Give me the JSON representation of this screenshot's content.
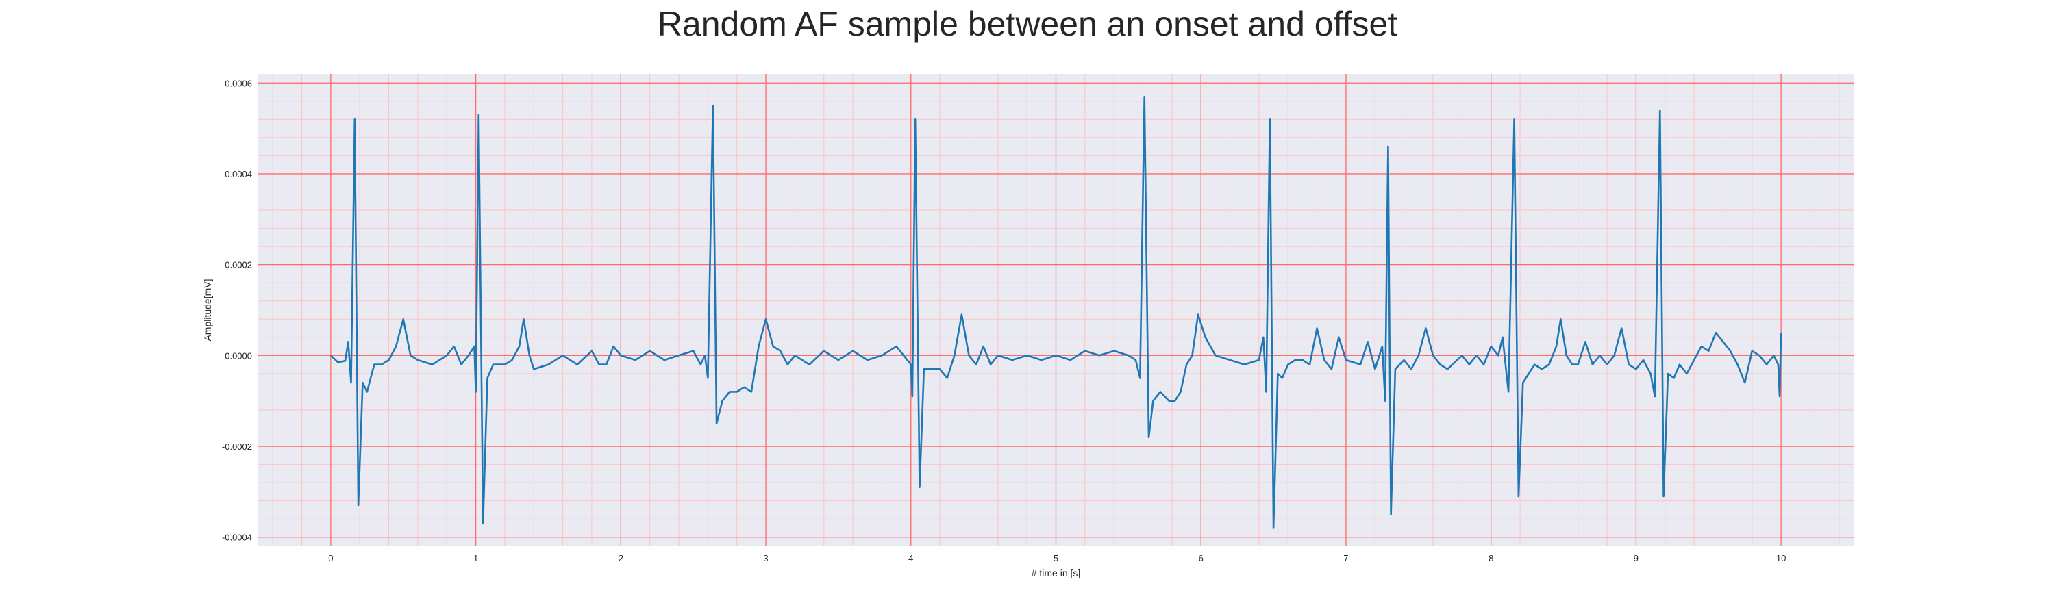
{
  "chart_data": {
    "type": "line",
    "title": "Random AF sample between an onset and offset",
    "xlabel": "# time in [s]",
    "ylabel": "Amplitude[mV]",
    "xlim": [
      -0.5,
      10.5
    ],
    "ylim": [
      -0.00042,
      0.00062
    ],
    "xticks": [
      0,
      1,
      2,
      3,
      4,
      5,
      6,
      7,
      8,
      9,
      10
    ],
    "xtick_labels": [
      "0",
      "1",
      "2",
      "3",
      "4",
      "5",
      "6",
      "7",
      "8",
      "9",
      "10"
    ],
    "yticks": [
      -0.0004,
      -0.0002,
      0.0,
      0.0002,
      0.0004,
      0.0006
    ],
    "ytick_labels": [
      "-0.0004",
      "-0.0002",
      "0.0000",
      "0.0002",
      "0.0004",
      "0.0006"
    ],
    "grid": true,
    "minor_grid": true,
    "colors": {
      "line": "#1f77b4",
      "major_grid": "#ff6b6b",
      "minor_grid": "#ffc3c3",
      "background": "#eaeaf2",
      "text": "#262626"
    },
    "series": [
      {
        "values": [
          [
            0.0,
            0.0
          ],
          [
            0.05,
            -1.5e-05
          ],
          [
            0.1,
            -1.2e-05
          ],
          [
            0.12,
            3e-05
          ],
          [
            0.14,
            -6e-05
          ],
          [
            0.165,
            0.00052
          ],
          [
            0.19,
            -0.00033
          ],
          [
            0.22,
            -6e-05
          ],
          [
            0.25,
            -8e-05
          ],
          [
            0.3,
            -2e-05
          ],
          [
            0.35,
            -2e-05
          ],
          [
            0.4,
            -1e-05
          ],
          [
            0.45,
            2e-05
          ],
          [
            0.5,
            8e-05
          ],
          [
            0.55,
            0.0
          ],
          [
            0.6,
            -1e-05
          ],
          [
            0.7,
            -2e-05
          ],
          [
            0.8,
            0.0
          ],
          [
            0.85,
            2e-05
          ],
          [
            0.9,
            -2e-05
          ],
          [
            0.95,
            0.0
          ],
          [
            0.99,
            2e-05
          ],
          [
            1.0,
            -8e-05
          ],
          [
            1.02,
            0.00053
          ],
          [
            1.05,
            -0.00037
          ],
          [
            1.08,
            -5e-05
          ],
          [
            1.12,
            -2e-05
          ],
          [
            1.2,
            -2e-05
          ],
          [
            1.25,
            -1e-05
          ],
          [
            1.3,
            2e-05
          ],
          [
            1.33,
            8e-05
          ],
          [
            1.37,
            0.0
          ],
          [
            1.4,
            -3e-05
          ],
          [
            1.5,
            -2e-05
          ],
          [
            1.6,
            0.0
          ],
          [
            1.7,
            -2e-05
          ],
          [
            1.8,
            1e-05
          ],
          [
            1.85,
            -2e-05
          ],
          [
            1.9,
            -2e-05
          ],
          [
            1.95,
            2e-05
          ],
          [
            2.0,
            0.0
          ],
          [
            2.1,
            -1e-05
          ],
          [
            2.2,
            1e-05
          ],
          [
            2.3,
            -1e-05
          ],
          [
            2.4,
            0.0
          ],
          [
            2.5,
            1e-05
          ],
          [
            2.55,
            -2e-05
          ],
          [
            2.58,
            0.0
          ],
          [
            2.6,
            -5e-05
          ],
          [
            2.635,
            0.00055
          ],
          [
            2.66,
            -0.00015
          ],
          [
            2.7,
            -0.0001
          ],
          [
            2.75,
            -8e-05
          ],
          [
            2.8,
            -8e-05
          ],
          [
            2.85,
            -7e-05
          ],
          [
            2.9,
            -8e-05
          ],
          [
            2.95,
            2e-05
          ],
          [
            3.0,
            8e-05
          ],
          [
            3.05,
            2e-05
          ],
          [
            3.1,
            1e-05
          ],
          [
            3.15,
            -2e-05
          ],
          [
            3.2,
            0.0
          ],
          [
            3.3,
            -2e-05
          ],
          [
            3.4,
            1e-05
          ],
          [
            3.5,
            -1e-05
          ],
          [
            3.6,
            1e-05
          ],
          [
            3.7,
            -1e-05
          ],
          [
            3.8,
            0.0
          ],
          [
            3.9,
            2e-05
          ],
          [
            4.0,
            -2e-05
          ],
          [
            4.01,
            -9e-05
          ],
          [
            4.03,
            0.00052
          ],
          [
            4.06,
            -0.00029
          ],
          [
            4.09,
            -3e-05
          ],
          [
            4.15,
            -3e-05
          ],
          [
            4.2,
            -3e-05
          ],
          [
            4.25,
            -5e-05
          ],
          [
            4.3,
            0.0
          ],
          [
            4.35,
            9e-05
          ],
          [
            4.4,
            0.0
          ],
          [
            4.45,
            -2e-05
          ],
          [
            4.5,
            2e-05
          ],
          [
            4.55,
            -2e-05
          ],
          [
            4.6,
            0.0
          ],
          [
            4.7,
            -1e-05
          ],
          [
            4.8,
            0.0
          ],
          [
            4.9,
            -1e-05
          ],
          [
            5.0,
            0.0
          ],
          [
            5.1,
            -1e-05
          ],
          [
            5.2,
            1e-05
          ],
          [
            5.3,
            0.0
          ],
          [
            5.4,
            1e-05
          ],
          [
            5.5,
            0.0
          ],
          [
            5.55,
            -1e-05
          ],
          [
            5.58,
            -5e-05
          ],
          [
            5.61,
            0.00057
          ],
          [
            5.64,
            -0.00018
          ],
          [
            5.67,
            -0.0001
          ],
          [
            5.72,
            -8e-05
          ],
          [
            5.78,
            -0.0001
          ],
          [
            5.82,
            -0.0001
          ],
          [
            5.86,
            -8e-05
          ],
          [
            5.9,
            -2e-05
          ],
          [
            5.94,
            0.0
          ],
          [
            5.98,
            9e-05
          ],
          [
            6.03,
            4e-05
          ],
          [
            6.1,
            0.0
          ],
          [
            6.2,
            -1e-05
          ],
          [
            6.3,
            -2e-05
          ],
          [
            6.4,
            -1e-05
          ],
          [
            6.43,
            4e-05
          ],
          [
            6.45,
            -8e-05
          ],
          [
            6.475,
            0.00052
          ],
          [
            6.5,
            -0.00038
          ],
          [
            6.53,
            -4e-05
          ],
          [
            6.56,
            -5e-05
          ],
          [
            6.6,
            -2e-05
          ],
          [
            6.65,
            -1e-05
          ],
          [
            6.7,
            -1e-05
          ],
          [
            6.75,
            -2e-05
          ],
          [
            6.8,
            6e-05
          ],
          [
            6.85,
            -1e-05
          ],
          [
            6.9,
            -3e-05
          ],
          [
            6.95,
            4e-05
          ],
          [
            7.0,
            -1e-05
          ],
          [
            7.1,
            -2e-05
          ],
          [
            7.15,
            3e-05
          ],
          [
            7.2,
            -3e-05
          ],
          [
            7.25,
            2e-05
          ],
          [
            7.27,
            -0.0001
          ],
          [
            7.29,
            0.00046
          ],
          [
            7.31,
            -0.00035
          ],
          [
            7.34,
            -3e-05
          ],
          [
            7.4,
            -1e-05
          ],
          [
            7.45,
            -3e-05
          ],
          [
            7.5,
            0.0
          ],
          [
            7.55,
            6e-05
          ],
          [
            7.6,
            0.0
          ],
          [
            7.65,
            -2e-05
          ],
          [
            7.7,
            -3e-05
          ],
          [
            7.8,
            0.0
          ],
          [
            7.85,
            -2e-05
          ],
          [
            7.9,
            0.0
          ],
          [
            7.95,
            -2e-05
          ],
          [
            8.0,
            2e-05
          ],
          [
            8.05,
            0.0
          ],
          [
            8.08,
            4e-05
          ],
          [
            8.12,
            -8e-05
          ],
          [
            8.16,
            0.00052
          ],
          [
            8.19,
            -0.00031
          ],
          [
            8.22,
            -6e-05
          ],
          [
            8.26,
            -4e-05
          ],
          [
            8.3,
            -2e-05
          ],
          [
            8.35,
            -3e-05
          ],
          [
            8.4,
            -2e-05
          ],
          [
            8.45,
            2e-05
          ],
          [
            8.48,
            8e-05
          ],
          [
            8.52,
            0.0
          ],
          [
            8.56,
            -2e-05
          ],
          [
            8.6,
            -2e-05
          ],
          [
            8.65,
            3e-05
          ],
          [
            8.7,
            -2e-05
          ],
          [
            8.75,
            0.0
          ],
          [
            8.8,
            -2e-05
          ],
          [
            8.85,
            0.0
          ],
          [
            8.9,
            6e-05
          ],
          [
            8.95,
            -2e-05
          ],
          [
            9.0,
            -3e-05
          ],
          [
            9.05,
            -1e-05
          ],
          [
            9.1,
            -4e-05
          ],
          [
            9.13,
            -9e-05
          ],
          [
            9.165,
            0.00054
          ],
          [
            9.19,
            -0.00031
          ],
          [
            9.22,
            -4e-05
          ],
          [
            9.26,
            -5e-05
          ],
          [
            9.3,
            -2e-05
          ],
          [
            9.35,
            -4e-05
          ],
          [
            9.4,
            -1e-05
          ],
          [
            9.45,
            2e-05
          ],
          [
            9.5,
            1e-05
          ],
          [
            9.55,
            5e-05
          ],
          [
            9.6,
            3e-05
          ],
          [
            9.65,
            1e-05
          ],
          [
            9.7,
            -2e-05
          ],
          [
            9.75,
            -6e-05
          ],
          [
            9.8,
            1e-05
          ],
          [
            9.85,
            0.0
          ],
          [
            9.9,
            -2e-05
          ],
          [
            9.95,
            0.0
          ],
          [
            9.98,
            -2e-05
          ],
          [
            9.99,
            -9e-05
          ],
          [
            10.0,
            5e-05
          ]
        ]
      }
    ]
  }
}
